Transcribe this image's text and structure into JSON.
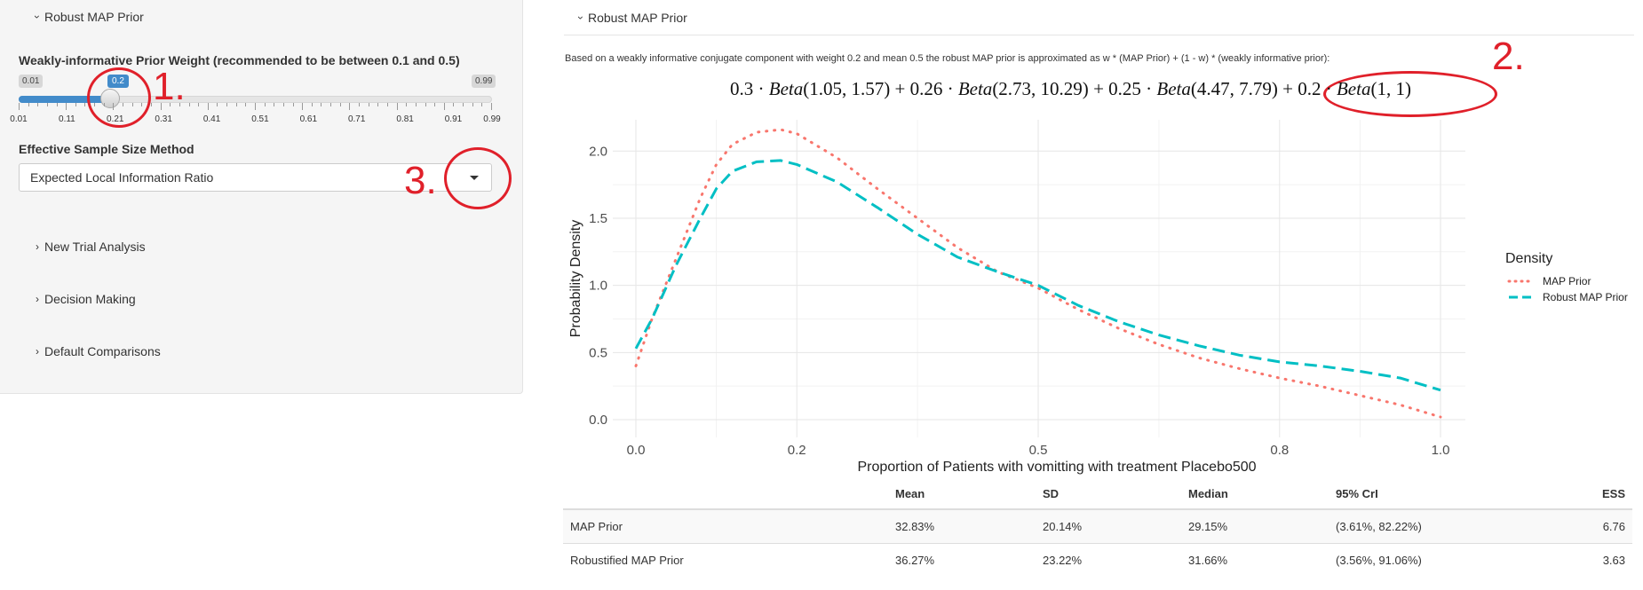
{
  "left": {
    "header": "Robust MAP Prior",
    "slider_label": "Weakly-informative Prior Weight (recommended to be between 0.1 and 0.5)",
    "slider": {
      "min": 0.01,
      "max": 0.99,
      "value": 0.2,
      "min_label": "0.01",
      "max_label": "0.99",
      "value_label": "0.2",
      "ticks": [
        "0.01",
        "0.11",
        "0.21",
        "0.31",
        "0.41",
        "0.51",
        "0.61",
        "0.71",
        "0.81",
        "0.91",
        "0.99"
      ]
    },
    "ess_label": "Effective Sample Size Method",
    "ess_value": "Expected Local Information Ratio",
    "sections": [
      "New Trial Analysis",
      "Decision Making",
      "Default Comparisons"
    ]
  },
  "annotations": [
    "1.",
    "2.",
    "3."
  ],
  "right": {
    "header": "Robust MAP Prior",
    "description": "Based on a weakly informative conjugate component with weight 0.2 and mean 0.5 the robust MAP prior is approximated as w * (MAP Prior) + (1 - w) * (weakly informative prior):",
    "formula_terms": [
      {
        "w": "0.3",
        "args": "(1.05, 1.57)"
      },
      {
        "w": "0.26",
        "args": "(2.73, 10.29)"
      },
      {
        "w": "0.25",
        "args": "(4.47, 7.79)"
      },
      {
        "w": "0.2",
        "args": "(1, 1)"
      }
    ],
    "formula_fn": "Beta",
    "table": {
      "headers": [
        "",
        "Mean",
        "SD",
        "Median",
        "95% CrI",
        "ESS"
      ],
      "rows": [
        [
          "MAP Prior",
          "32.83%",
          "20.14%",
          "29.15%",
          "(3.61%, 82.22%)",
          "6.76"
        ],
        [
          "Robustified MAP Prior",
          "36.27%",
          "23.22%",
          "31.66%",
          "(3.56%, 91.06%)",
          "3.63"
        ]
      ]
    }
  },
  "chart_data": {
    "type": "line",
    "xlabel": "Proportion of Patients with vomitting with treatment Placebo500",
    "ylabel": "Probability Density",
    "xlim": [
      0,
      1.0
    ],
    "ylim": [
      0,
      2.2
    ],
    "x_ticks": [
      "0.0",
      "0.2",
      "0.5",
      "0.8",
      "1.0"
    ],
    "x_tick_values": [
      0,
      0.2,
      0.5,
      0.8,
      1.0
    ],
    "y_ticks": [
      "0.0",
      "0.5",
      "1.0",
      "1.5",
      "2.0"
    ],
    "y_tick_values": [
      0,
      0.5,
      1.0,
      1.5,
      2.0
    ],
    "legend_title": "Density",
    "legend_position": "right",
    "grid": true,
    "x": [
      0,
      0.02,
      0.05,
      0.08,
      0.1,
      0.12,
      0.15,
      0.18,
      0.2,
      0.25,
      0.3,
      0.35,
      0.4,
      0.45,
      0.5,
      0.55,
      0.6,
      0.65,
      0.7,
      0.75,
      0.8,
      0.85,
      0.9,
      0.95,
      1.0
    ],
    "series": [
      {
        "name": "MAP Prior",
        "color": "#f8766d",
        "style": "dotted",
        "values": [
          0.4,
          0.75,
          1.2,
          1.65,
          1.9,
          2.05,
          2.14,
          2.16,
          2.13,
          1.95,
          1.72,
          1.5,
          1.28,
          1.1,
          0.98,
          0.82,
          0.68,
          0.56,
          0.46,
          0.38,
          0.31,
          0.25,
          0.18,
          0.11,
          0.02
        ]
      },
      {
        "name": "Robust MAP Prior",
        "color": "#00bfc4",
        "style": "dashed",
        "values": [
          0.53,
          0.75,
          1.15,
          1.5,
          1.72,
          1.85,
          1.92,
          1.93,
          1.9,
          1.77,
          1.58,
          1.38,
          1.21,
          1.1,
          1.0,
          0.85,
          0.73,
          0.63,
          0.55,
          0.48,
          0.43,
          0.4,
          0.36,
          0.31,
          0.22
        ]
      }
    ]
  }
}
